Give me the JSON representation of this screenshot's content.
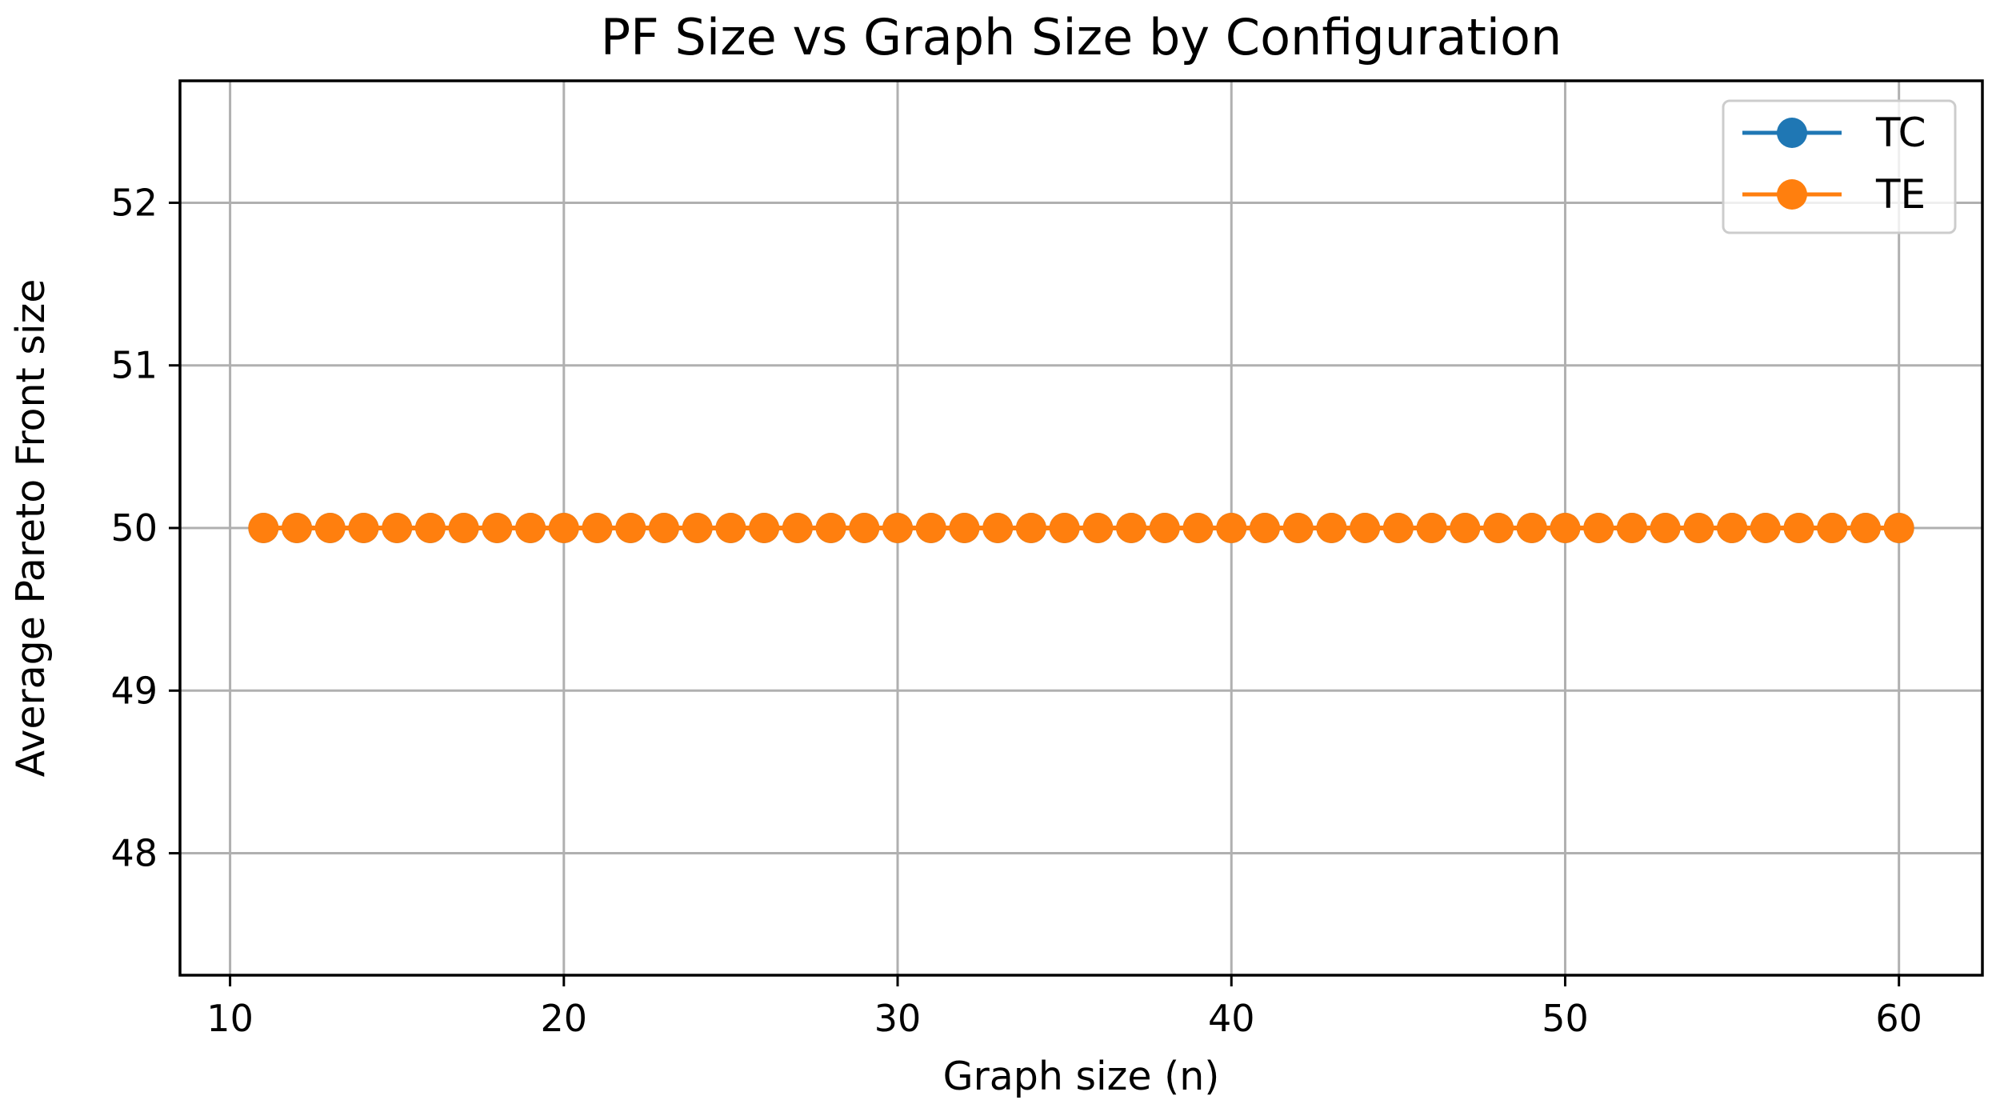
{
  "chart_data": {
    "type": "line",
    "title": "PF Size vs Graph Size by Configuration",
    "xlabel": "Graph size (n)",
    "ylabel": "Average Pareto Front size",
    "xlim": [
      8.5,
      62.5
    ],
    "ylim": [
      47.25,
      52.75
    ],
    "x_ticks": [
      10,
      20,
      30,
      40,
      50,
      60
    ],
    "y_ticks": [
      48,
      49,
      50,
      51,
      52
    ],
    "grid": true,
    "legend_position": "top-right",
    "x": [
      11,
      12,
      13,
      14,
      15,
      16,
      17,
      18,
      19,
      20,
      21,
      22,
      23,
      24,
      25,
      26,
      27,
      28,
      29,
      30,
      31,
      32,
      33,
      34,
      35,
      36,
      37,
      38,
      39,
      40,
      41,
      42,
      43,
      44,
      45,
      46,
      47,
      48,
      49,
      50,
      51,
      52,
      53,
      54,
      55,
      56,
      57,
      58,
      59,
      60
    ],
    "series": [
      {
        "name": "TC",
        "color": "#1f77b4",
        "values": [
          50,
          50,
          50,
          50,
          50,
          50,
          50,
          50,
          50,
          50,
          50,
          50,
          50,
          50,
          50,
          50,
          50,
          50,
          50,
          50,
          50,
          50,
          50,
          50,
          50,
          50,
          50,
          50,
          50,
          50,
          50,
          50,
          50,
          50,
          50,
          50,
          50,
          50,
          50,
          50,
          50,
          50,
          50,
          50,
          50,
          50,
          50,
          50,
          50,
          50
        ]
      },
      {
        "name": "TE",
        "color": "#ff7f0e",
        "values": [
          50,
          50,
          50,
          50,
          50,
          50,
          50,
          50,
          50,
          50,
          50,
          50,
          50,
          50,
          50,
          50,
          50,
          50,
          50,
          50,
          50,
          50,
          50,
          50,
          50,
          50,
          50,
          50,
          50,
          50,
          50,
          50,
          50,
          50,
          50,
          50,
          50,
          50,
          50,
          50,
          50,
          50,
          50,
          50,
          50,
          50,
          50,
          50,
          50,
          50
        ]
      }
    ]
  }
}
